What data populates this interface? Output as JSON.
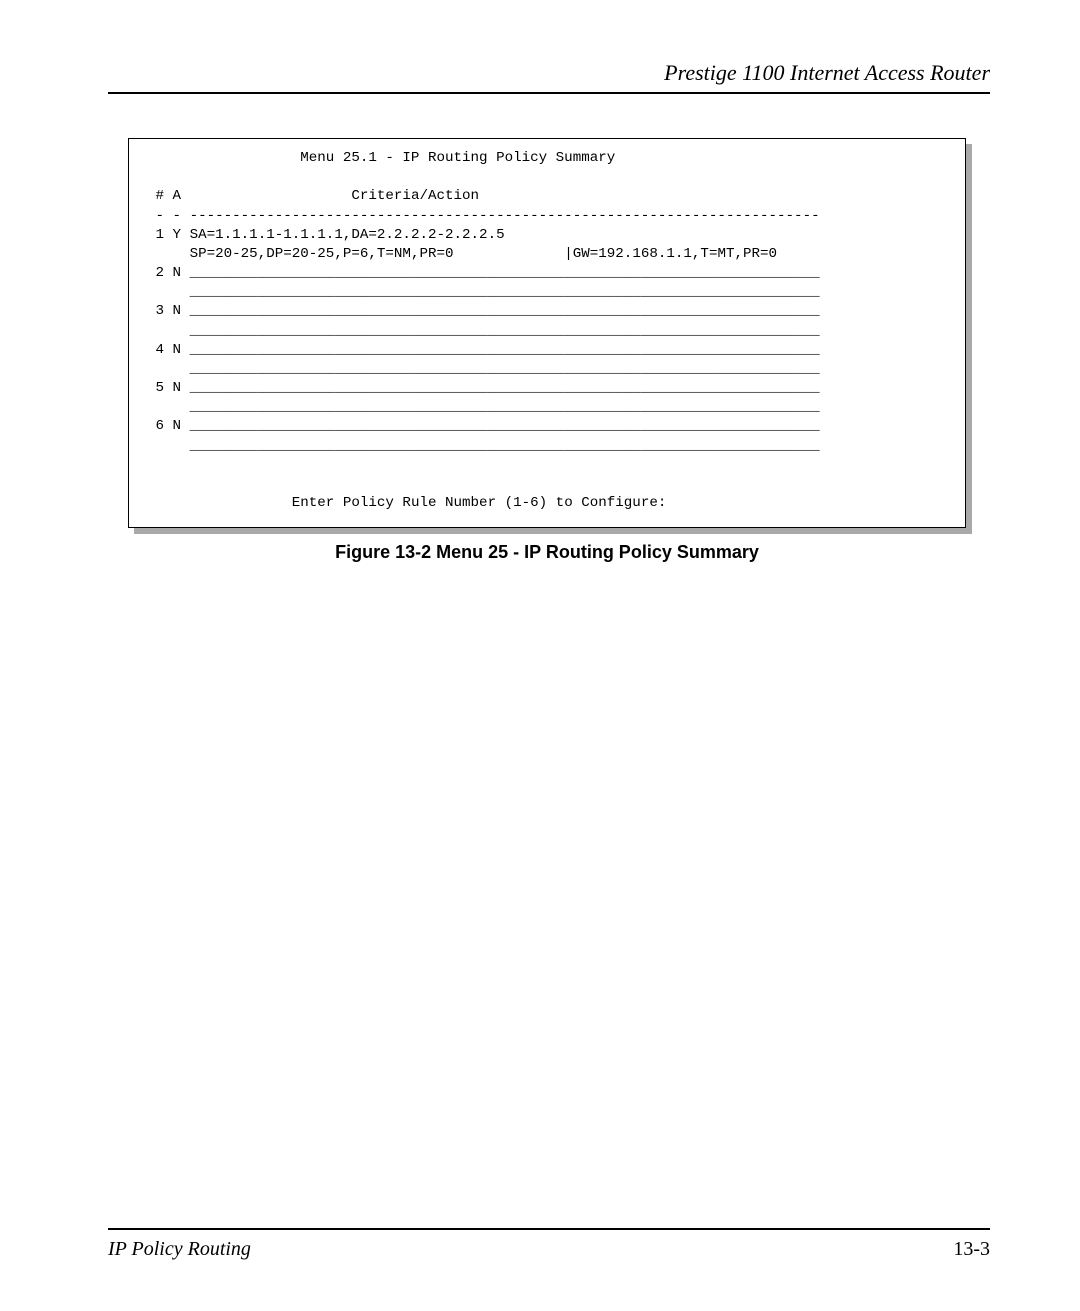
{
  "header": {
    "product_title": "Prestige 1100 Internet Access Router"
  },
  "terminal": {
    "menu_title": "Menu 25.1 - IP Routing Policy Summary",
    "col_num": "#",
    "col_act": "A",
    "col_criteria": "Criteria/Action",
    "row1_num": "1",
    "row1_act": "Y",
    "row1_line1": "SA=1.1.1.1-1.1.1.1,DA=2.2.2.2-2.2.2.5",
    "row1_line2_left": "SP=20-25,DP=20-25,P=6,T=NM,PR=0",
    "row1_line2_right": "|GW=192.168.1.1,T=MT,PR=0",
    "row2_num": "2",
    "row2_act": "N",
    "row3_num": "3",
    "row3_act": "N",
    "row4_num": "4",
    "row4_act": "N",
    "row5_num": "5",
    "row5_act": "N",
    "row6_num": "6",
    "row6_act": "N",
    "blank_rule": "__________________________________________________________________________",
    "prompt": "Enter Policy Rule Number (1-6) to Configure:"
  },
  "caption": "Figure 13-2 Menu 25 - IP Routing Policy Summary",
  "footer": {
    "section": "IP Policy Routing",
    "page": "13-3"
  },
  "colors": {
    "text": "#000000",
    "bg": "#ffffff",
    "shadow": "#a9a9a9",
    "rule": "#000000"
  }
}
